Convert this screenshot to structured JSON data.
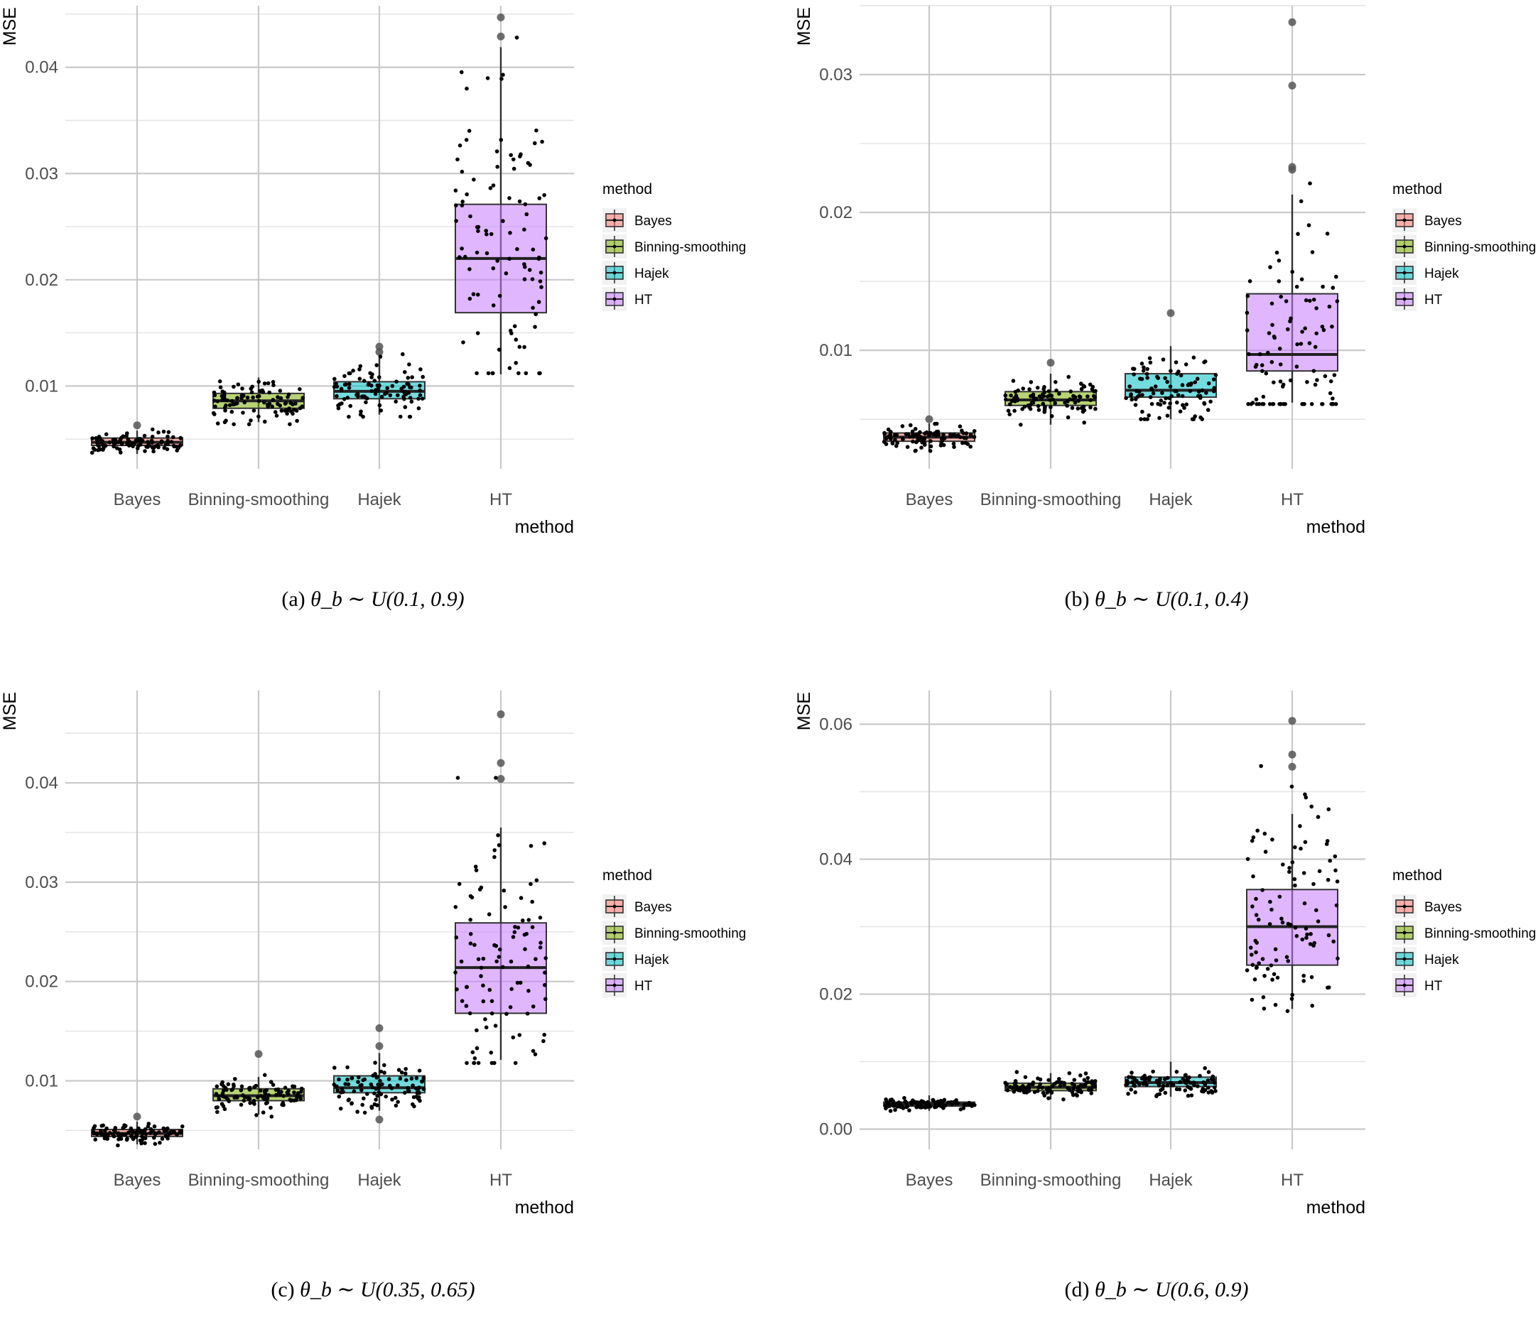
{
  "figure": {
    "captions": [
      {
        "label": "(a)",
        "text": "θ_b ∼ U(0.1, 0.9)"
      },
      {
        "label": "(b)",
        "text": "θ_b ∼ U(0.1, 0.4)"
      },
      {
        "label": "(c)",
        "text": "θ_b ∼ U(0.35, 0.65)"
      },
      {
        "label": "(d)",
        "text": "θ_b ∼ U(0.6, 0.9)"
      }
    ]
  },
  "colors": {
    "Bayes": "#F8766D",
    "Binning-smoothing": "#7CAE00",
    "Hajek": "#00BFC4",
    "HT": "#C77CFF"
  },
  "chart_data": [
    {
      "type": "boxplot",
      "panel": "a",
      "ylabel": "MSE",
      "xlabel": "method",
      "ylim": [
        0.0022,
        0.0458
      ],
      "yticks": [
        0.01,
        0.02,
        0.03,
        0.04
      ],
      "ytick_labels": [
        "0.01",
        "0.02",
        "0.03",
        "0.04"
      ],
      "categories": [
        "Bayes",
        "Binning-smoothing",
        "Hajek",
        "HT"
      ],
      "legend": {
        "title": "method",
        "entries": [
          "Bayes",
          "Binning-smoothing",
          "Hajek",
          "HT"
        ]
      },
      "boxes": [
        {
          "name": "Bayes",
          "min": 0.0036,
          "q1": 0.0044,
          "median": 0.0047,
          "q3": 0.0051,
          "max": 0.0058,
          "outliers": [
            0.0063
          ],
          "jitter_range": [
            0.0034,
            0.0062
          ]
        },
        {
          "name": "Binning-smoothing",
          "min": 0.0066,
          "q1": 0.0079,
          "median": 0.0086,
          "q3": 0.0093,
          "max": 0.0108,
          "outliers": [],
          "jitter_range": [
            0.0064,
            0.011
          ]
        },
        {
          "name": "Hajek",
          "min": 0.0073,
          "q1": 0.0088,
          "median": 0.0095,
          "q3": 0.0104,
          "max": 0.0126,
          "outliers": [
            0.0137,
            0.0132
          ],
          "jitter_range": [
            0.0071,
            0.0137
          ]
        },
        {
          "name": "HT",
          "min": 0.0111,
          "q1": 0.0169,
          "median": 0.022,
          "q3": 0.0271,
          "max": 0.0419,
          "outliers": [
            0.0447,
            0.0429
          ],
          "jitter_range": [
            0.0112,
            0.0428
          ]
        }
      ]
    },
    {
      "type": "boxplot",
      "panel": "b",
      "ylabel": "MSE",
      "xlabel": "method",
      "ylim": [
        0.0014,
        0.035
      ],
      "yticks": [
        0.01,
        0.02,
        0.03
      ],
      "ytick_labels": [
        "0.01",
        "0.02",
        "0.03"
      ],
      "categories": [
        "Bayes",
        "Binning-smoothing",
        "Hajek",
        "HT"
      ],
      "legend": {
        "title": "method",
        "entries": [
          "Bayes",
          "Binning-smoothing",
          "Hajek",
          "HT"
        ]
      },
      "boxes": [
        {
          "name": "Bayes",
          "min": 0.0027,
          "q1": 0.0034,
          "median": 0.0037,
          "q3": 0.004,
          "max": 0.0047,
          "outliers": [
            0.005
          ],
          "jitter_range": [
            0.0027,
            0.005
          ]
        },
        {
          "name": "Binning-smoothing",
          "min": 0.0046,
          "q1": 0.006,
          "median": 0.0064,
          "q3": 0.007,
          "max": 0.0083,
          "outliers": [
            0.0091
          ],
          "jitter_range": [
            0.0046,
            0.009
          ]
        },
        {
          "name": "Hajek",
          "min": 0.005,
          "q1": 0.0066,
          "median": 0.0071,
          "q3": 0.0083,
          "max": 0.0103,
          "outliers": [
            0.0127
          ],
          "jitter_range": [
            0.005,
            0.0127
          ]
        },
        {
          "name": "HT",
          "min": 0.0062,
          "q1": 0.0085,
          "median": 0.0097,
          "q3": 0.0141,
          "max": 0.0213,
          "outliers": [
            0.0338,
            0.0292,
            0.0233,
            0.0231
          ],
          "jitter_range": [
            0.0061,
            0.0337
          ]
        }
      ]
    },
    {
      "type": "boxplot",
      "panel": "c",
      "ylabel": "MSE",
      "xlabel": "method",
      "ylim": [
        0.0031,
        0.0493
      ],
      "yticks": [
        0.01,
        0.02,
        0.03,
        0.04
      ],
      "ytick_labels": [
        "0.01",
        "0.02",
        "0.03",
        "0.04"
      ],
      "categories": [
        "Bayes",
        "Binning-smoothing",
        "Hajek",
        "HT"
      ],
      "legend": {
        "title": "method",
        "entries": [
          "Bayes",
          "Binning-smoothing",
          "Hajek",
          "HT"
        ]
      },
      "boxes": [
        {
          "name": "Bayes",
          "min": 0.0036,
          "q1": 0.0044,
          "median": 0.0047,
          "q3": 0.0051,
          "max": 0.0059,
          "outliers": [
            0.0064
          ],
          "jitter_range": [
            0.0035,
            0.0063
          ]
        },
        {
          "name": "Binning-smoothing",
          "min": 0.0066,
          "q1": 0.008,
          "median": 0.0085,
          "q3": 0.0092,
          "max": 0.0104,
          "outliers": [
            0.0127
          ],
          "jitter_range": [
            0.0064,
            0.0126
          ]
        },
        {
          "name": "Hajek",
          "min": 0.007,
          "q1": 0.0088,
          "median": 0.0093,
          "q3": 0.0105,
          "max": 0.0128,
          "outliers": [
            0.0153,
            0.0135,
            0.0061
          ],
          "jitter_range": [
            0.0068,
            0.0152
          ]
        },
        {
          "name": "HT",
          "min": 0.0121,
          "q1": 0.0168,
          "median": 0.0214,
          "q3": 0.0259,
          "max": 0.0355,
          "outliers": [
            0.0469,
            0.042,
            0.0404
          ],
          "jitter_range": [
            0.0118,
            0.0405
          ]
        }
      ]
    },
    {
      "type": "boxplot",
      "panel": "d",
      "ylabel": "MSE",
      "xlabel": "method",
      "ylim": [
        -0.003,
        0.065
      ],
      "yticks": [
        0.0,
        0.02,
        0.04,
        0.06
      ],
      "ytick_labels": [
        "0.00",
        "0.02",
        "0.04",
        "0.06"
      ],
      "categories": [
        "Bayes",
        "Binning-smoothing",
        "Hajek",
        "HT"
      ],
      "legend": {
        "title": "method",
        "entries": [
          "Bayes",
          "Binning-smoothing",
          "Hajek",
          "HT"
        ]
      },
      "boxes": [
        {
          "name": "Bayes",
          "min": 0.0027,
          "q1": 0.0034,
          "median": 0.0037,
          "q3": 0.004,
          "max": 0.005,
          "outliers": [],
          "jitter_range": [
            0.0027,
            0.005
          ]
        },
        {
          "name": "Binning-smoothing",
          "min": 0.0044,
          "q1": 0.0057,
          "median": 0.0062,
          "q3": 0.0068,
          "max": 0.0083,
          "outliers": [],
          "jitter_range": [
            0.0044,
            0.0085
          ]
        },
        {
          "name": "Hajek",
          "min": 0.0048,
          "q1": 0.0063,
          "median": 0.0069,
          "q3": 0.0077,
          "max": 0.01,
          "outliers": [],
          "jitter_range": [
            0.0048,
            0.0102
          ]
        },
        {
          "name": "HT",
          "min": 0.0178,
          "q1": 0.0243,
          "median": 0.03,
          "q3": 0.0355,
          "max": 0.0467,
          "outliers": [
            0.0605,
            0.0555,
            0.0537
          ],
          "jitter_range": [
            0.0175,
            0.0538
          ]
        }
      ]
    }
  ]
}
